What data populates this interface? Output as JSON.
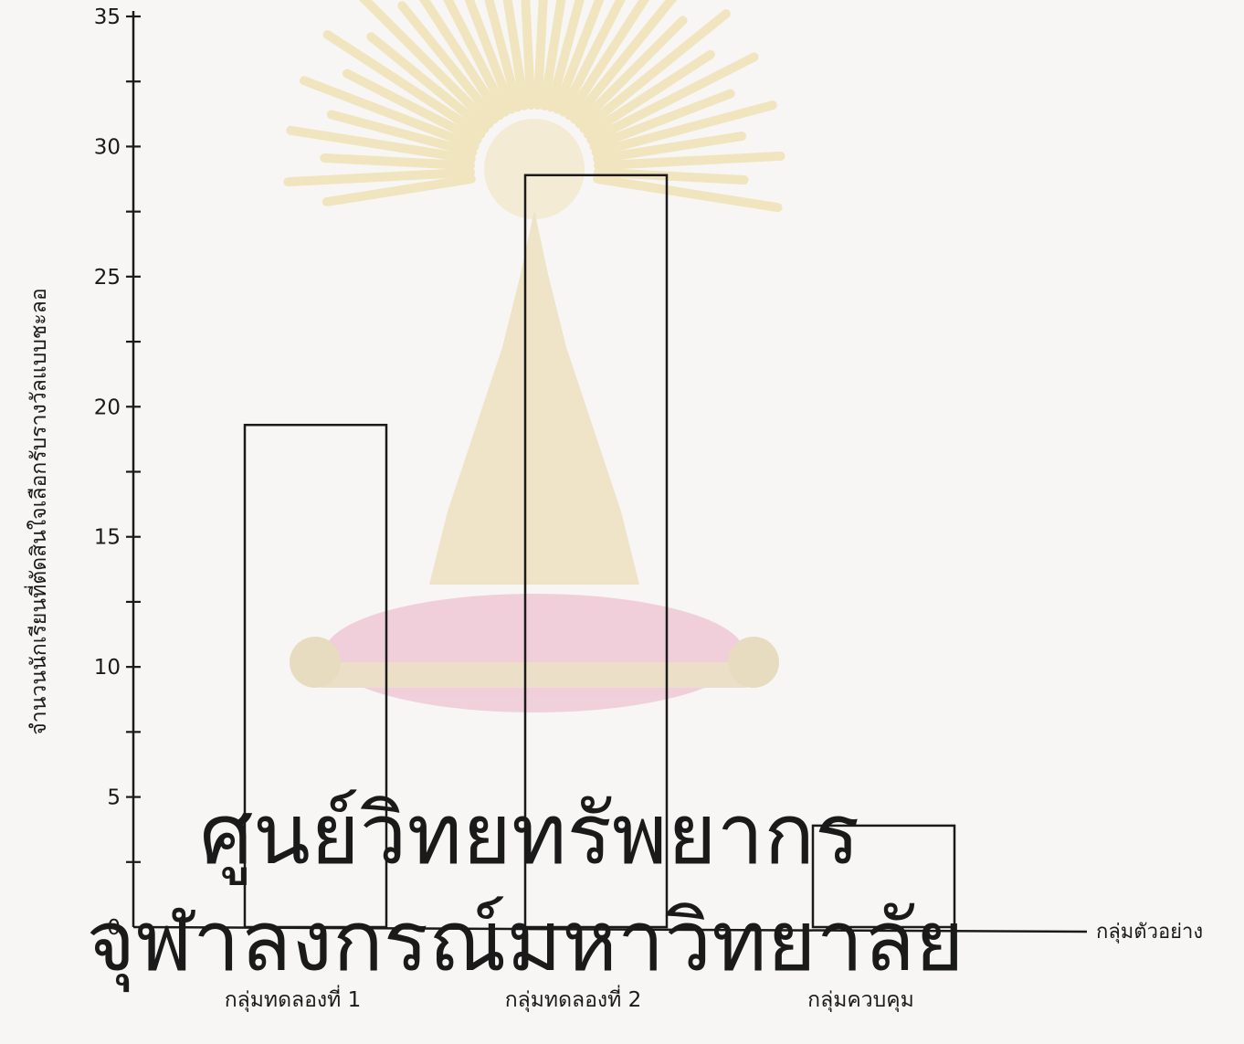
{
  "chart_data": {
    "type": "bar",
    "categories": [
      "กลุ่มทดลองที่ 1",
      "กลุ่มทดลองที่ 2",
      "กลุ่มควบคุม"
    ],
    "values": [
      19.3,
      28.9,
      3.9
    ],
    "yticks": [
      0,
      5,
      10,
      15,
      20,
      25,
      30,
      35
    ],
    "ylim": [
      0,
      35
    ],
    "minor_tick_step": 2.5,
    "xlabel": "กลุ่มตัวอย่าง",
    "ylabel": "จำนวนนักเรียนที่ตัดสินใจเลือกรับรางวัลแบบชะลอ",
    "grid": false,
    "legend": "none"
  },
  "watermark": {
    "line1": "ศูนย์วิทยทรัพยากร",
    "line2": "จุฬาลงกรณ์มหาวิทยาลัย",
    "emblem": "chulalongkorn-emblem-icon"
  },
  "colors": {
    "ink": "#1a1a1a",
    "watermark_text": "#e8cdd6",
    "emblem_gold": "#f1e3b8",
    "emblem_pink": "#efc9d6",
    "paper": "#f7f6f4"
  }
}
